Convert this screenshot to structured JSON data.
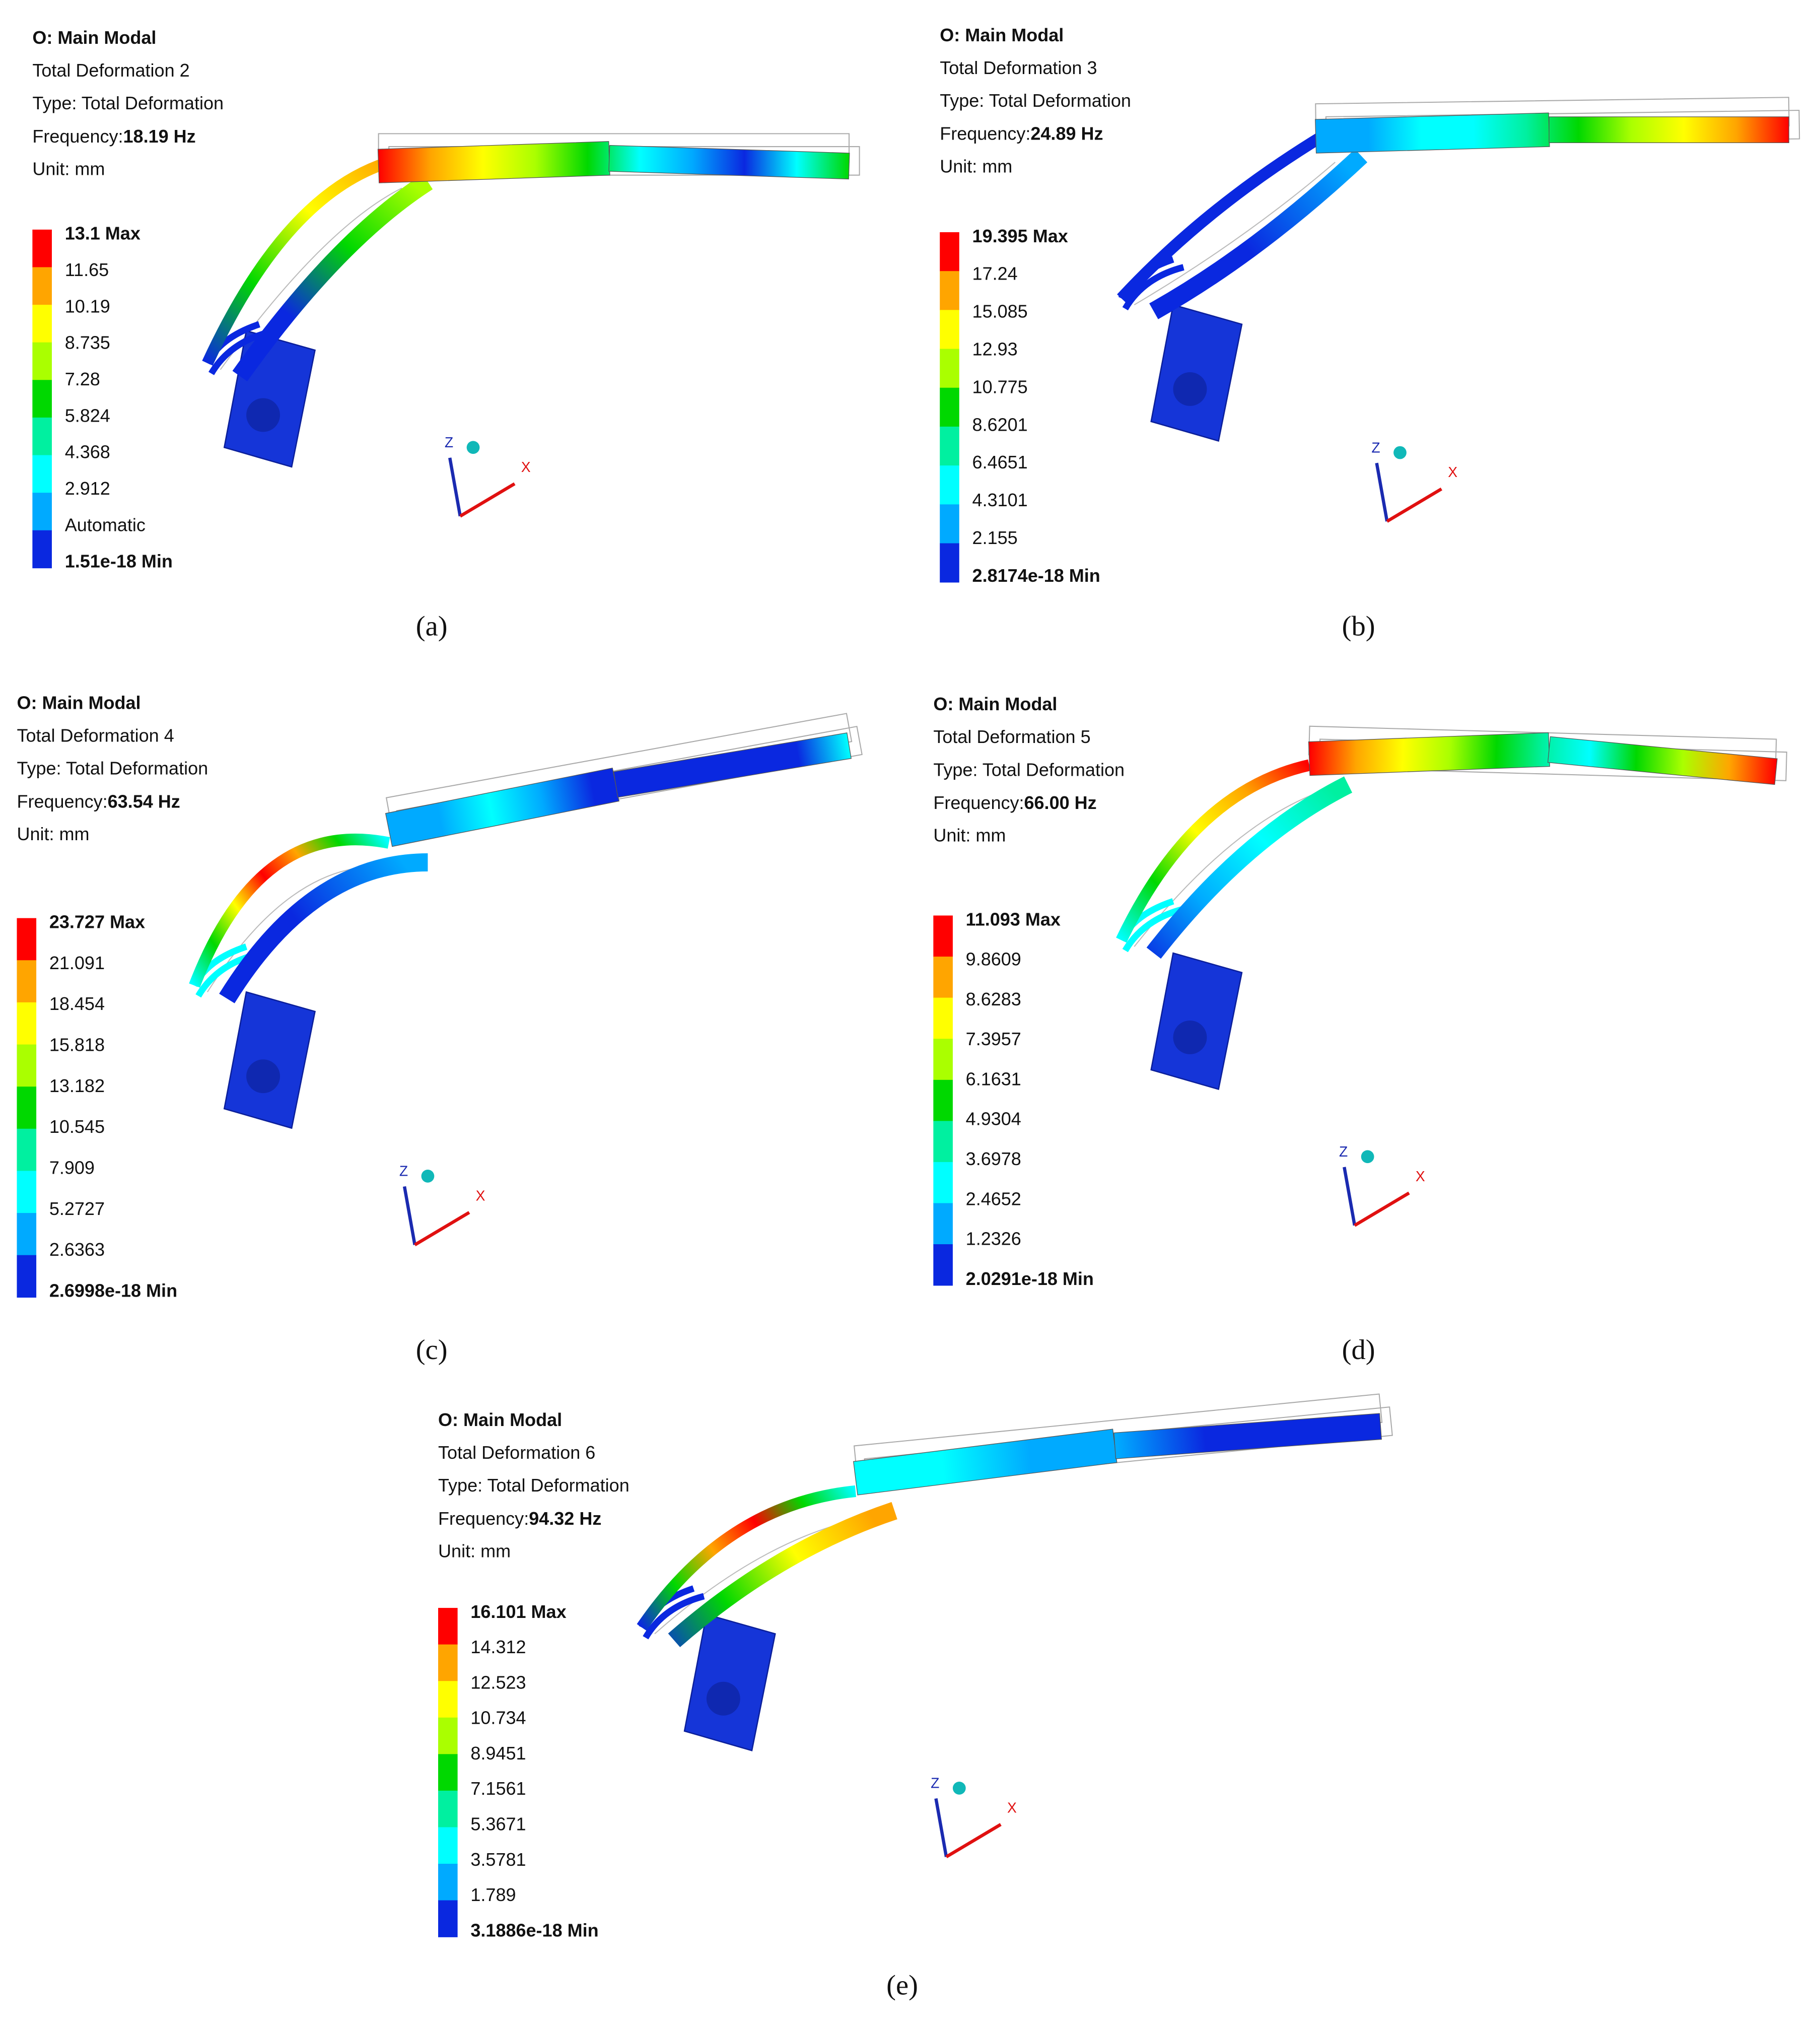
{
  "panels": [
    {
      "lines": [
        "O: Main Modal",
        "Total Deformation 2",
        "Type: Total Deformation"
      ],
      "frequency_label": "Frequency:",
      "frequency": "18.19 Hz",
      "unit": "Unit: mm",
      "legend": [
        "13.1 Max",
        "11.65",
        "10.19",
        "8.735",
        "7.28",
        "5.824",
        "4.368",
        "2.912",
        "Automatic",
        "1.51e-18 Min"
      ],
      "triad_z": "Z",
      "triad_x": "X",
      "caption": "(a)"
    },
    {
      "lines": [
        "O: Main Modal",
        "Total Deformation 3",
        "Type: Total Deformation"
      ],
      "frequency_label": "Frequency:",
      "frequency": "24.89 Hz",
      "unit": "Unit: mm",
      "legend": [
        "19.395 Max",
        "17.24",
        "15.085",
        "12.93",
        "10.775",
        "8.6201",
        "6.4651",
        "4.3101",
        "2.155",
        "2.8174e-18 Min"
      ],
      "triad_z": "Z",
      "triad_x": "X",
      "caption": "(b)"
    },
    {
      "lines": [
        "O: Main Modal",
        "Total Deformation 4",
        "Type: Total Deformation"
      ],
      "frequency_label": "Frequency:",
      "frequency": "63.54 Hz",
      "unit": "Unit: mm",
      "legend": [
        "23.727 Max",
        "21.091",
        "18.454",
        "15.818",
        "13.182",
        "10.545",
        "7.909",
        "5.2727",
        "2.6363",
        "2.6998e-18 Min"
      ],
      "triad_z": "Z",
      "triad_x": "X",
      "caption": "(c)"
    },
    {
      "lines": [
        "O: Main Modal",
        "Total Deformation 5",
        "Type: Total Deformation"
      ],
      "frequency_label": "Frequency:",
      "frequency": "66.00 Hz",
      "unit": "Unit: mm",
      "legend": [
        "11.093 Max",
        "9.8609",
        "8.6283",
        "7.3957",
        "6.1631",
        "4.9304",
        "3.6978",
        "2.4652",
        "1.2326",
        "2.0291e-18 Min"
      ],
      "triad_z": "Z",
      "triad_x": "X",
      "caption": "(d)"
    },
    {
      "lines": [
        "O: Main Modal",
        "Total Deformation 6",
        "Type: Total Deformation"
      ],
      "frequency_label": "Frequency:",
      "frequency": "94.32 Hz",
      "unit": "Unit: mm",
      "legend": [
        "16.101 Max",
        "14.312",
        "12.523",
        "10.734",
        "8.9451",
        "7.1561",
        "5.3671",
        "3.5781",
        "1.789",
        "3.1886e-18 Min"
      ],
      "triad_z": "Z",
      "triad_x": "X",
      "caption": "(e)"
    }
  ]
}
